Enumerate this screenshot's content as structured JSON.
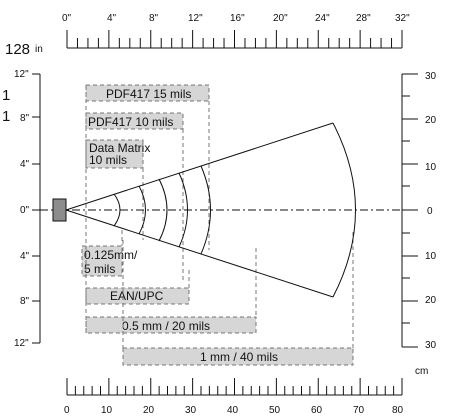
{
  "top_axis": {
    "unit_label": "in",
    "tick_labels": [
      "0\"",
      "4\"",
      "8\"",
      "12\"",
      "16\"",
      "20\"",
      "24\"",
      "28\"",
      "32\""
    ],
    "left_marker": "128"
  },
  "bottom_axis": {
    "unit_label": "cm",
    "tick_labels": [
      "0",
      "10",
      "20",
      "30",
      "40",
      "50",
      "60",
      "70",
      "80"
    ]
  },
  "left_axis": {
    "tick_labels": [
      "12\"",
      "8\"",
      "4\"",
      "0\"",
      "4\"",
      "8\"",
      "12\""
    ],
    "stray_marks": [
      "1",
      "1"
    ]
  },
  "right_axis": {
    "tick_labels": [
      "30",
      "20",
      "10",
      "0",
      "10",
      "20",
      "30"
    ]
  },
  "bars": {
    "pdf15": "PDF417 15 mils",
    "pdf10": "PDF417 10 mils",
    "dm": [
      "Data Matrix",
      "10 mils"
    ],
    "small": [
      "0.125mm/",
      "5 mils"
    ],
    "ean": "EAN/UPC",
    "mm05": "0.5 mm / 20 mils",
    "mm1": "1 mm / 40 mils"
  },
  "colors": {
    "bar_fill": "#d6d6d6",
    "scanner": "#8c8c8c",
    "line": "#111111"
  }
}
